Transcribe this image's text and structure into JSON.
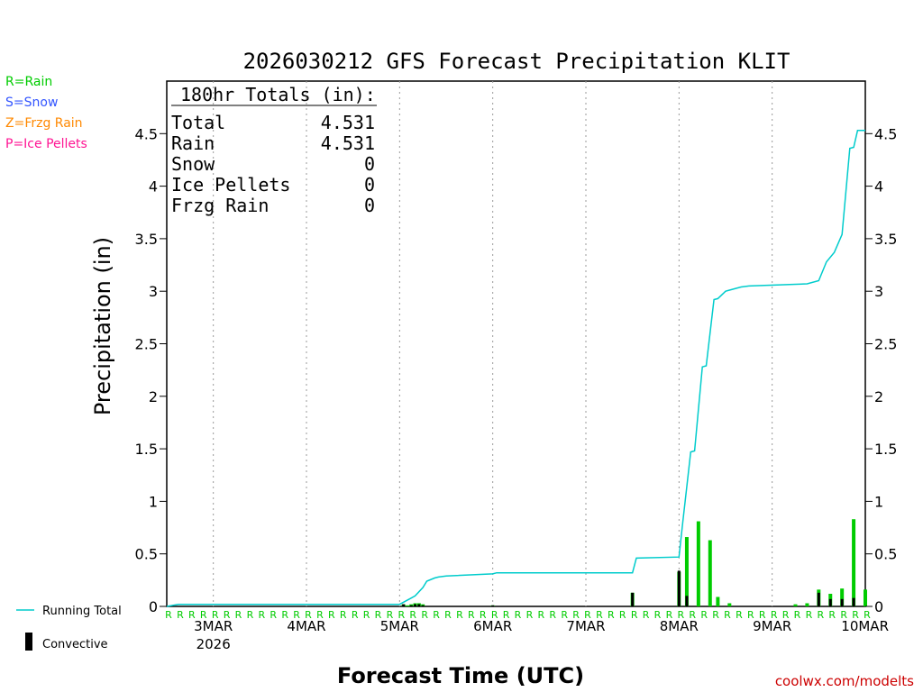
{
  "colors": {
    "rain": "#00cc00",
    "snow": "#3355ff",
    "frzg": "#ff8800",
    "ice": "#ff1493",
    "running_total": "#00cccc",
    "convective": "#000000",
    "credit": "#cc0000",
    "axis": "#000000",
    "grid": "#999999"
  },
  "legend_ptype": [
    "R=Rain",
    "S=Snow",
    "Z=Frzg Rain",
    "P=Ice Pellets"
  ],
  "totals_box": {
    "header": "180hr Totals (in):",
    "rows": [
      {
        "label": "Total",
        "value": "4.531"
      },
      {
        "label": "Rain",
        "value": "4.531"
      },
      {
        "label": "Snow",
        "value": "0"
      },
      {
        "label": "Ice Pellets",
        "value": "0"
      },
      {
        "label": "Frzg Rain",
        "value": "0"
      }
    ]
  },
  "bottom_legend": {
    "running_total": "Running Total",
    "convective": "Convective"
  },
  "credit": "coolwx.com/modelts",
  "chart_data": {
    "type": "bar",
    "title": "2026030212 GFS Forecast Precipitation KLIT",
    "xlabel": "Forecast Time (UTC)",
    "ylabel": "Precipitation (in)",
    "xlim_hours": [
      0,
      180
    ],
    "ylim": [
      0,
      5
    ],
    "yticks": [
      0,
      0.5,
      1,
      1.5,
      2,
      2.5,
      3,
      3.5,
      4,
      4.5
    ],
    "ytick_labels": [
      "0",
      "0.5",
      "1",
      "1.5",
      "2",
      "2.5",
      "3",
      "3.5",
      "4",
      "4.5"
    ],
    "xticks": [
      {
        "hour": 12,
        "label": "3MAR",
        "sublabel": "2026"
      },
      {
        "hour": 36,
        "label": "4MAR",
        "sublabel": ""
      },
      {
        "hour": 60,
        "label": "5MAR",
        "sublabel": ""
      },
      {
        "hour": 84,
        "label": "6MAR",
        "sublabel": ""
      },
      {
        "hour": 108,
        "label": "7MAR",
        "sublabel": ""
      },
      {
        "hour": 132,
        "label": "8MAR",
        "sublabel": ""
      },
      {
        "hour": 156,
        "label": "9MAR",
        "sublabel": ""
      },
      {
        "hour": 180,
        "label": "10MAR",
        "sublabel": ""
      }
    ],
    "running_total": {
      "name": "Running Total",
      "hours": [
        0,
        3,
        60,
        63,
        64,
        66,
        67,
        69,
        70,
        72,
        84,
        85,
        120,
        121,
        132,
        133,
        135,
        136,
        138,
        139,
        141,
        142,
        144,
        145,
        148,
        150,
        165,
        168,
        170,
        172,
        174,
        176,
        177,
        178,
        180
      ],
      "values": [
        0.0,
        0.02,
        0.02,
        0.08,
        0.1,
        0.18,
        0.24,
        0.27,
        0.28,
        0.29,
        0.31,
        0.32,
        0.32,
        0.46,
        0.47,
        0.81,
        1.47,
        1.48,
        2.28,
        2.29,
        2.92,
        2.93,
        3.0,
        3.01,
        3.04,
        3.05,
        3.07,
        3.1,
        3.28,
        3.37,
        3.54,
        4.36,
        4.37,
        4.53,
        4.53
      ]
    },
    "series": [
      {
        "name": "Rain",
        "hours": [
          61,
          62,
          63,
          64,
          65,
          66,
          84,
          120,
          132,
          134,
          137,
          140,
          142,
          145,
          162,
          165,
          168,
          171,
          174,
          177,
          180
        ],
        "values": [
          0.02,
          0.01,
          0.02,
          0.03,
          0.03,
          0.02,
          0.01,
          0.13,
          0.33,
          0.66,
          0.81,
          0.63,
          0.09,
          0.03,
          0.02,
          0.03,
          0.16,
          0.12,
          0.17,
          0.83,
          0.16
        ]
      },
      {
        "name": "Convective",
        "hours": [
          61,
          63,
          64,
          65,
          66,
          84,
          120,
          132,
          134,
          137,
          140,
          142,
          145,
          162,
          165,
          168,
          171,
          174,
          177,
          180
        ],
        "values": [
          0.02,
          0.01,
          0.02,
          0.02,
          0.01,
          0.01,
          0.13,
          0.34,
          0.1,
          0.0,
          0.0,
          0.0,
          0.0,
          0.0,
          0.0,
          0.13,
          0.07,
          0.07,
          0.08,
          0.0
        ]
      }
    ],
    "ptype_marks": {
      "symbol": "R",
      "hours_per_mark": 3,
      "count": 61
    }
  }
}
